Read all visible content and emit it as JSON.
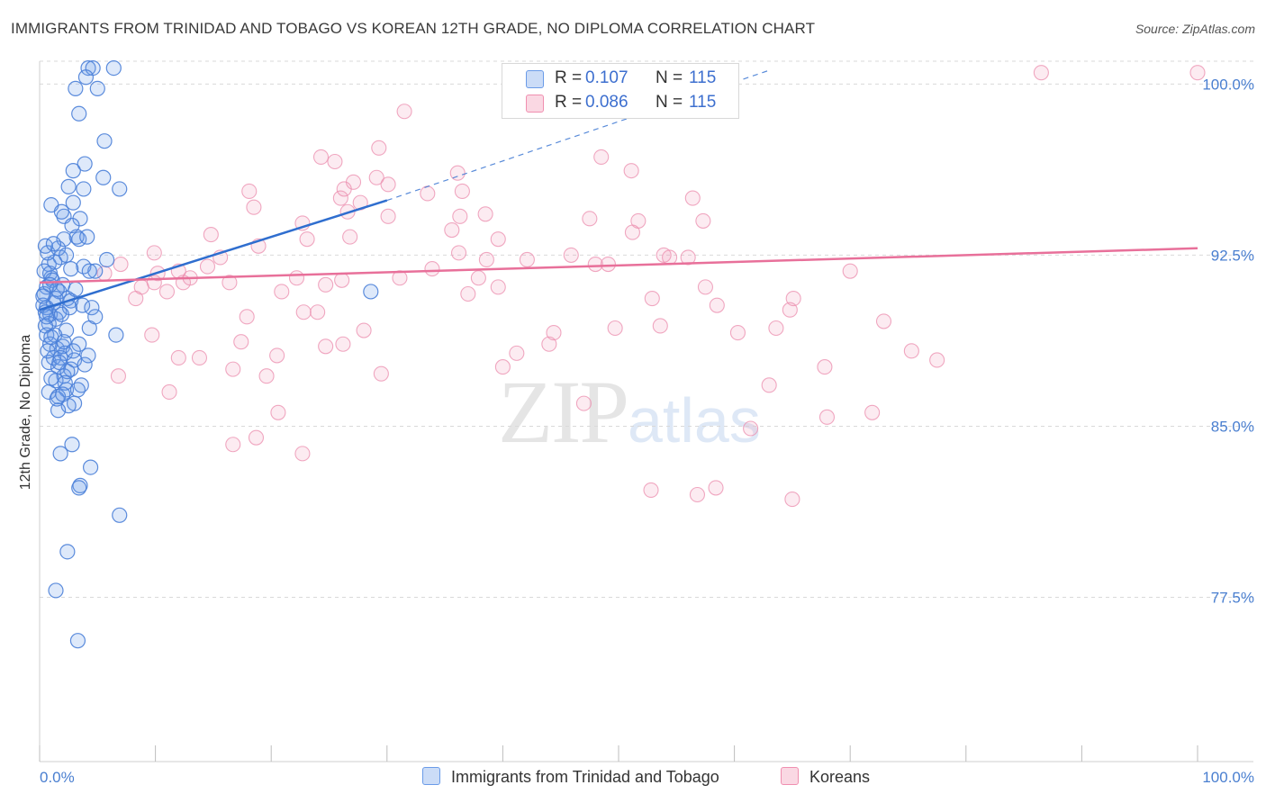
{
  "header": {
    "title": "IMMIGRANTS FROM TRINIDAD AND TOBAGO VS KOREAN 12TH GRADE, NO DIPLOMA CORRELATION CHART",
    "source": "Source: ZipAtlas.com"
  },
  "legend": {
    "rows": [
      {
        "r_label": "R =",
        "r_value": "0.107",
        "n_label": "N =",
        "n_value": "115",
        "color": "#6a9be8"
      },
      {
        "r_label": "R =",
        "r_value": "0.086",
        "n_label": "N =",
        "n_value": "115",
        "color": "#f08fb0"
      }
    ]
  },
  "bottom_legend": {
    "series1": "Immigrants from Trinidad and Tobago",
    "series2": "Koreans"
  },
  "watermark": {
    "zip": "ZIP",
    "atlas": "atlas"
  },
  "colors": {
    "blue": "#4a80d8",
    "blue_fill": "rgba(106,155,232,0.22)",
    "blue_line": "#2f6ecf",
    "pink": "#ec92b2",
    "pink_fill": "rgba(240,143,176,0.18)",
    "pink_line": "#e8709a",
    "grid": "#d9d9d9",
    "tick_text": "#4a7fd0"
  },
  "chart_data": {
    "type": "scatter",
    "title": "IMMIGRANTS FROM TRINIDAD AND TOBAGO VS KOREAN 12TH GRADE, NO DIPLOMA CORRELATION CHART",
    "xlabel": "",
    "ylabel": "12th Grade, No Diploma",
    "xlim": [
      0,
      100
    ],
    "ylim": [
      70.3,
      101.0
    ],
    "x_tick_labels": [
      "0.0%",
      "100.0%"
    ],
    "y_ticks": [
      100.0,
      92.5,
      85.0,
      77.5
    ],
    "y_tick_labels": [
      "100.0%",
      "92.5%",
      "85.0%",
      "77.5%"
    ],
    "grid": true,
    "legend_position": "top-center",
    "series": [
      {
        "name": "Immigrants from Trinidad and Tobago",
        "color": "#6a9be8",
        "trend": {
          "x": [
            0.0,
            30.0
          ],
          "y": [
            90.1,
            94.9
          ],
          "dashed_extension_to": [
            63.0,
            100.6
          ]
        },
        "points": [
          [
            4.2,
            100.7
          ],
          [
            4.6,
            100.7
          ],
          [
            6.4,
            100.7
          ],
          [
            4.0,
            100.3
          ],
          [
            5.0,
            99.8
          ],
          [
            3.1,
            99.8
          ],
          [
            3.4,
            98.7
          ],
          [
            5.6,
            97.5
          ],
          [
            3.9,
            96.5
          ],
          [
            2.9,
            96.2
          ],
          [
            5.5,
            95.9
          ],
          [
            2.5,
            95.5
          ],
          [
            3.8,
            95.4
          ],
          [
            6.9,
            95.4
          ],
          [
            2.9,
            94.8
          ],
          [
            1.0,
            94.7
          ],
          [
            2.1,
            94.2
          ],
          [
            3.5,
            94.1
          ],
          [
            3.2,
            93.3
          ],
          [
            2.1,
            93.2
          ],
          [
            3.4,
            93.2
          ],
          [
            1.8,
            92.4
          ],
          [
            0.8,
            92.1
          ],
          [
            1.3,
            92.2
          ],
          [
            3.8,
            92.0
          ],
          [
            2.7,
            91.9
          ],
          [
            4.8,
            91.8
          ],
          [
            4.3,
            91.8
          ],
          [
            1.0,
            91.5
          ],
          [
            2.0,
            91.2
          ],
          [
            0.6,
            91.1
          ],
          [
            1.7,
            90.9
          ],
          [
            0.4,
            90.8
          ],
          [
            2.4,
            90.6
          ],
          [
            2.7,
            90.5
          ],
          [
            0.3,
            90.3
          ],
          [
            1.2,
            90.4
          ],
          [
            0.6,
            90.2
          ],
          [
            3.7,
            90.3
          ],
          [
            4.5,
            90.2
          ],
          [
            0.5,
            90.0
          ],
          [
            0.9,
            89.9
          ],
          [
            1.7,
            90.0
          ],
          [
            1.4,
            89.7
          ],
          [
            0.8,
            89.5
          ],
          [
            4.3,
            89.3
          ],
          [
            2.3,
            89.2
          ],
          [
            6.6,
            89.0
          ],
          [
            0.6,
            89.0
          ],
          [
            3.4,
            88.6
          ],
          [
            0.9,
            88.6
          ],
          [
            1.5,
            88.4
          ],
          [
            2.0,
            88.5
          ],
          [
            2.2,
            88.2
          ],
          [
            4.2,
            88.1
          ],
          [
            1.2,
            88.0
          ],
          [
            0.8,
            87.8
          ],
          [
            1.6,
            87.6
          ],
          [
            2.7,
            87.5
          ],
          [
            2.1,
            87.2
          ],
          [
            1.4,
            87.0
          ],
          [
            3.6,
            86.8
          ],
          [
            2.3,
            86.6
          ],
          [
            0.8,
            86.5
          ],
          [
            1.6,
            86.3
          ],
          [
            3.0,
            86.0
          ],
          [
            2.5,
            85.9
          ],
          [
            1.6,
            85.7
          ],
          [
            2.8,
            84.2
          ],
          [
            1.8,
            83.8
          ],
          [
            4.4,
            83.2
          ],
          [
            3.5,
            82.4
          ],
          [
            3.4,
            82.3
          ],
          [
            6.9,
            81.1
          ],
          [
            2.4,
            79.5
          ],
          [
            1.4,
            77.8
          ],
          [
            3.3,
            75.6
          ],
          [
            28.6,
            90.9
          ],
          [
            0.4,
            91.8
          ],
          [
            0.9,
            91.7
          ],
          [
            1.1,
            91.4
          ],
          [
            1.5,
            91.0
          ],
          [
            0.3,
            90.7
          ],
          [
            2.6,
            90.2
          ],
          [
            1.9,
            89.9
          ],
          [
            0.5,
            89.4
          ],
          [
            1.3,
            89.0
          ],
          [
            2.1,
            88.7
          ],
          [
            0.7,
            88.3
          ],
          [
            1.8,
            88.0
          ],
          [
            3.0,
            87.9
          ],
          [
            2.4,
            87.4
          ],
          [
            1.0,
            87.1
          ],
          [
            3.9,
            87.7
          ],
          [
            2.2,
            86.9
          ],
          [
            1.5,
            86.2
          ],
          [
            0.7,
            92.6
          ],
          [
            1.6,
            92.8
          ],
          [
            2.3,
            92.5
          ],
          [
            0.5,
            92.9
          ],
          [
            1.2,
            93.0
          ],
          [
            2.8,
            93.8
          ],
          [
            1.9,
            94.4
          ],
          [
            4.1,
            93.3
          ],
          [
            5.8,
            92.3
          ],
          [
            0.9,
            91.2
          ],
          [
            1.4,
            90.6
          ],
          [
            3.1,
            91.0
          ],
          [
            0.6,
            89.8
          ],
          [
            1.0,
            88.9
          ],
          [
            2.9,
            88.3
          ],
          [
            1.7,
            87.8
          ],
          [
            3.3,
            86.6
          ],
          [
            2.0,
            86.4
          ],
          [
            4.8,
            89.8
          ]
        ]
      },
      {
        "name": "Koreans",
        "color": "#f08fb0",
        "trend": {
          "x": [
            0.0,
            100.0
          ],
          "y": [
            91.3,
            92.8
          ]
        },
        "points": [
          [
            40.8,
            100.5
          ],
          [
            86.5,
            100.5
          ],
          [
            100.0,
            100.5
          ],
          [
            31.5,
            98.8
          ],
          [
            29.3,
            97.2
          ],
          [
            24.3,
            96.8
          ],
          [
            25.5,
            96.6
          ],
          [
            48.5,
            96.8
          ],
          [
            51.1,
            96.2
          ],
          [
            36.1,
            96.1
          ],
          [
            29.1,
            95.9
          ],
          [
            27.1,
            95.7
          ],
          [
            30.1,
            95.6
          ],
          [
            26.3,
            95.4
          ],
          [
            36.5,
            95.3
          ],
          [
            56.4,
            95.0
          ],
          [
            18.1,
            95.3
          ],
          [
            33.5,
            95.2
          ],
          [
            26.0,
            95.0
          ],
          [
            27.7,
            94.8
          ],
          [
            18.5,
            94.6
          ],
          [
            26.6,
            94.4
          ],
          [
            38.5,
            94.3
          ],
          [
            36.3,
            94.2
          ],
          [
            30.1,
            94.2
          ],
          [
            47.5,
            94.1
          ],
          [
            51.7,
            94.0
          ],
          [
            57.3,
            94.0
          ],
          [
            22.7,
            93.9
          ],
          [
            35.6,
            93.6
          ],
          [
            51.2,
            93.5
          ],
          [
            14.8,
            93.4
          ],
          [
            26.8,
            93.3
          ],
          [
            39.6,
            93.2
          ],
          [
            23.1,
            93.2
          ],
          [
            36.2,
            92.6
          ],
          [
            18.9,
            92.9
          ],
          [
            9.9,
            92.6
          ],
          [
            15.6,
            92.4
          ],
          [
            45.9,
            92.5
          ],
          [
            53.9,
            92.5
          ],
          [
            54.4,
            92.4
          ],
          [
            56.0,
            92.4
          ],
          [
            38.6,
            92.3
          ],
          [
            42.1,
            92.3
          ],
          [
            48.0,
            92.1
          ],
          [
            49.1,
            92.1
          ],
          [
            33.9,
            91.9
          ],
          [
            10.2,
            91.7
          ],
          [
            22.2,
            91.5
          ],
          [
            37.9,
            91.5
          ],
          [
            31.1,
            91.5
          ],
          [
            26.1,
            91.4
          ],
          [
            9.9,
            91.3
          ],
          [
            12.4,
            91.3
          ],
          [
            13.0,
            91.5
          ],
          [
            16.4,
            91.3
          ],
          [
            24.7,
            91.2
          ],
          [
            8.8,
            91.1
          ],
          [
            39.6,
            91.1
          ],
          [
            57.5,
            91.1
          ],
          [
            20.9,
            90.9
          ],
          [
            37.0,
            90.8
          ],
          [
            52.9,
            90.6
          ],
          [
            65.1,
            90.6
          ],
          [
            58.5,
            90.3
          ],
          [
            64.8,
            90.1
          ],
          [
            22.8,
            90.0
          ],
          [
            24.0,
            90.0
          ],
          [
            17.9,
            89.8
          ],
          [
            53.6,
            89.4
          ],
          [
            49.7,
            89.3
          ],
          [
            63.6,
            89.3
          ],
          [
            28.0,
            89.2
          ],
          [
            44.4,
            89.1
          ],
          [
            60.3,
            89.1
          ],
          [
            9.7,
            89.0
          ],
          [
            17.4,
            88.7
          ],
          [
            26.2,
            88.6
          ],
          [
            24.7,
            88.5
          ],
          [
            44.0,
            88.6
          ],
          [
            41.2,
            88.2
          ],
          [
            12.0,
            88.0
          ],
          [
            13.8,
            88.0
          ],
          [
            16.7,
            87.5
          ],
          [
            40.0,
            87.6
          ],
          [
            19.6,
            87.2
          ],
          [
            67.8,
            87.6
          ],
          [
            75.3,
            88.3
          ],
          [
            77.5,
            87.9
          ],
          [
            6.8,
            87.2
          ],
          [
            29.5,
            87.3
          ],
          [
            11.2,
            86.5
          ],
          [
            20.6,
            85.6
          ],
          [
            71.9,
            85.6
          ],
          [
            18.7,
            84.5
          ],
          [
            16.7,
            84.2
          ],
          [
            22.7,
            83.8
          ],
          [
            52.8,
            82.2
          ],
          [
            56.8,
            82.0
          ],
          [
            58.4,
            82.3
          ],
          [
            65.0,
            81.8
          ],
          [
            14.5,
            92.0
          ],
          [
            12.0,
            91.8
          ],
          [
            7.0,
            92.1
          ],
          [
            11.0,
            90.9
          ],
          [
            8.3,
            90.6
          ],
          [
            5.6,
            91.7
          ],
          [
            47.0,
            86.0
          ],
          [
            63.0,
            86.8
          ],
          [
            68.0,
            85.4
          ],
          [
            61.4,
            84.9
          ],
          [
            70.0,
            91.8
          ],
          [
            72.9,
            89.6
          ],
          [
            20.5,
            88.1
          ]
        ]
      }
    ]
  }
}
